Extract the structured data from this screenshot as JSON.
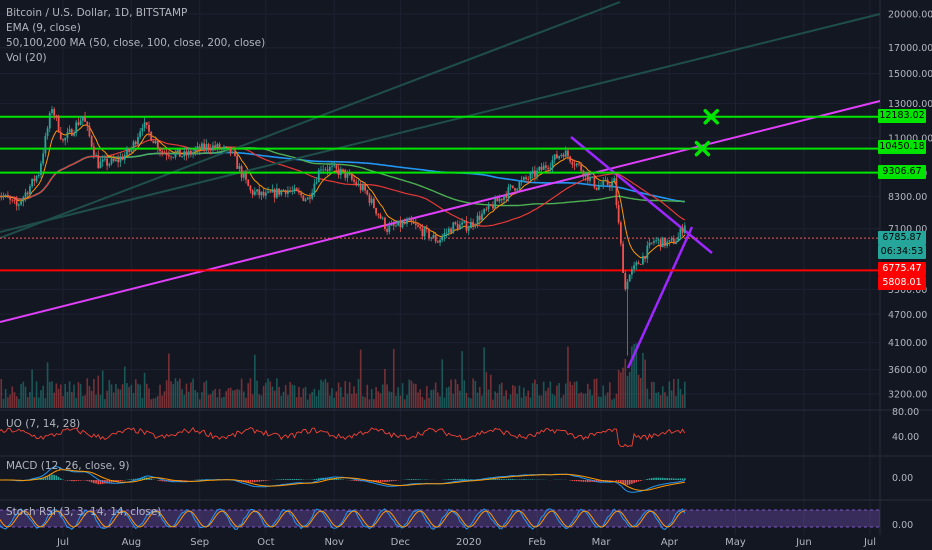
{
  "legend": {
    "title": "Bitcoin / U.S. Dollar, 1D, BITSTAMP",
    "ema": "EMA (9, close)",
    "ma": "50,100,200 MA (50, close, 100, close, 200, close)",
    "vol": "Vol (20)",
    "uo": "UO (7, 14, 28)",
    "macd": "MACD (12, 26, close, 9)",
    "stoch": "Stoch RSI (3, 3, 14, 14, close)"
  },
  "price_tags": [
    {
      "label": "12183.02",
      "bg": "#00e500"
    },
    {
      "label": "10450.18",
      "bg": "#00e500"
    },
    {
      "label": "9306.67",
      "bg": "#00e500"
    },
    {
      "label": "6785.87",
      "bg": "#26a69a"
    },
    {
      "label": "06:34:53",
      "bg": "#26a69a"
    },
    {
      "label": "6775.47",
      "bg": "#ff0000"
    },
    {
      "label": "5808.01",
      "bg": "#ff0000"
    }
  ],
  "chart_data": {
    "type": "candlestick",
    "title": "Bitcoin / U.S. Dollar, 1D, BITSTAMP",
    "price_axis_ticks": [
      20000,
      17000,
      15000,
      13000,
      11000,
      9300,
      8300,
      7100,
      5300,
      4700,
      4100,
      3600,
      3200
    ],
    "time_axis_ticks": [
      "Jul",
      "Aug",
      "Sep",
      "Oct",
      "Nov",
      "Dec",
      "2020",
      "Feb",
      "Mar",
      "Apr",
      "May",
      "Jun",
      "Jul"
    ],
    "horizontal_levels": [
      {
        "value": 12183.02,
        "color": "#00e500"
      },
      {
        "value": 10450.18,
        "color": "#00e500"
      },
      {
        "value": 9306.67,
        "color": "#00e500"
      },
      {
        "value": 6785.87,
        "color": "#ff5252"
      },
      {
        "value": 5808.01,
        "color": "#ff0000"
      }
    ],
    "markers": [
      {
        "shape": "x",
        "color": "#00e500",
        "price": 12183.02,
        "date": "2020-04-20"
      },
      {
        "shape": "x",
        "color": "#00e500",
        "price": 10450.18,
        "date": "2020-04-16"
      }
    ],
    "close_series": {
      "dates": [
        "2019-06-01",
        "2019-06-10",
        "2019-06-20",
        "2019-06-26",
        "2019-07-01",
        "2019-07-10",
        "2019-07-17",
        "2019-07-25",
        "2019-08-01",
        "2019-08-06",
        "2019-08-15",
        "2019-08-25",
        "2019-09-05",
        "2019-09-15",
        "2019-09-24",
        "2019-10-01",
        "2019-10-10",
        "2019-10-20",
        "2019-10-26",
        "2019-11-05",
        "2019-11-15",
        "2019-11-25",
        "2019-12-05",
        "2019-12-18",
        "2019-12-25",
        "2020-01-01",
        "2020-01-10",
        "2020-01-20",
        "2020-02-01",
        "2020-02-13",
        "2020-02-20",
        "2020-02-28",
        "2020-03-07",
        "2020-03-12",
        "2020-03-13",
        "2020-03-20",
        "2020-03-25",
        "2020-04-01",
        "2020-04-05",
        "2020-04-08"
      ],
      "close": [
        8500,
        7900,
        9300,
        12800,
        10800,
        12200,
        9700,
        9800,
        10400,
        11800,
        10300,
        10100,
        10600,
        10300,
        8500,
        8300,
        8600,
        8200,
        9600,
        9300,
        8500,
        7100,
        7300,
        6700,
        7200,
        7200,
        7800,
        8600,
        9300,
        10300,
        9600,
        8700,
        8900,
        5300,
        5600,
        6200,
        6700,
        6600,
        6800,
        7300
      ]
    }
  }
}
